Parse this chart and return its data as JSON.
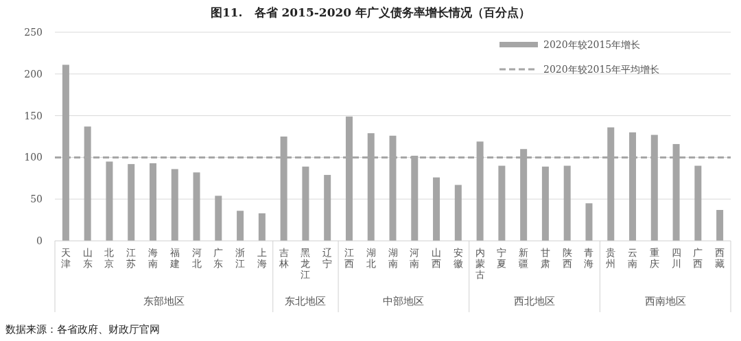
{
  "chart_data": {
    "type": "bar",
    "title": "图11.　各省 2015-2020 年广义债务率增长情况（百分点）",
    "categories": [
      "天津",
      "山东",
      "北京",
      "江苏",
      "海南",
      "福建",
      "河北",
      "广东",
      "浙江",
      "上海",
      "吉林",
      "黑龙江",
      "辽宁",
      "江西",
      "湖北",
      "湖南",
      "河南",
      "山西",
      "安徽",
      "内蒙古",
      "宁夏",
      "新疆",
      "甘肃",
      "陕西",
      "青海",
      "贵州",
      "云南",
      "重庆",
      "四川",
      "广西",
      "西藏"
    ],
    "series": [
      {
        "name": "2020年较2015年增长",
        "color": "#a5a5a5",
        "values": [
          211,
          137,
          95,
          92,
          93,
          86,
          82,
          54,
          36,
          33,
          125,
          89,
          79,
          149,
          129,
          126,
          102,
          76,
          67,
          119,
          90,
          110,
          89,
          90,
          45,
          136,
          130,
          127,
          116,
          90,
          37
        ]
      }
    ],
    "ylim": [
      0,
      250
    ],
    "yticks": [
      0,
      50,
      100,
      150,
      200,
      250
    ],
    "grid": "y",
    "legend": "top right",
    "ref_lines": [
      {
        "axis": "y",
        "value": 100,
        "label": "2020年较2015年平均增长",
        "color": "#a6a6a6",
        "line_style": "dashed"
      }
    ],
    "annotations": [
      "东部地区",
      "东北地区",
      "中部地区",
      "西北地区",
      "西南地区",
      "数据来源：各省政府、财政厅官网"
    ]
  }
}
